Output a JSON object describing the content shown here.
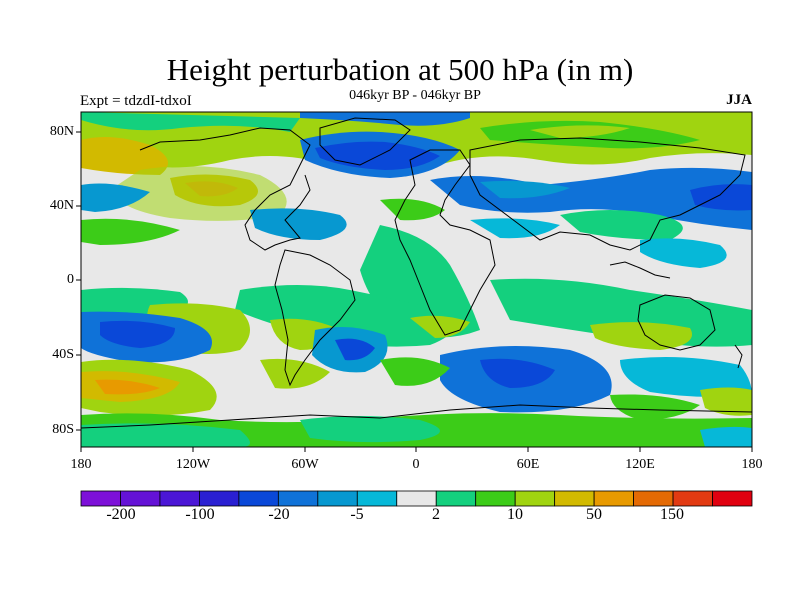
{
  "header": {
    "title": "Height perturbation at 500 hPa (in m)",
    "subtitle": "046kyr BP - 046kyr BP",
    "left_label": "Expt = tdzdI-tdxoI",
    "right_label": "JJA"
  },
  "axes": {
    "lat_labels": [
      "80N",
      "40N",
      "0",
      "40S",
      "80S"
    ],
    "lon_labels": [
      "180",
      "120W",
      "60W",
      "0",
      "60E",
      "120E",
      "180"
    ]
  },
  "colorbar": {
    "colors": [
      "#7d10d8",
      "#6412d6",
      "#4b16d6",
      "#2a20d2",
      "#0a48d8",
      "#0f72d8",
      "#0798d0",
      "#06b8d8",
      "#e8e8e8",
      "#14d07e",
      "#3ccc18",
      "#a0d410",
      "#d2ba00",
      "#e89a00",
      "#e46a04",
      "#e23a12",
      "#e00010"
    ],
    "labels": [
      "-200",
      "-100",
      "-20",
      "-5",
      "2",
      "10",
      "50",
      "150"
    ]
  },
  "map_data": {
    "region": "global",
    "projection": "cylindrical-equidistant",
    "field": "500 hPa height perturbation",
    "units": "m",
    "lon_range": [
      -180,
      180
    ],
    "lat_range": [
      -90,
      90
    ]
  }
}
